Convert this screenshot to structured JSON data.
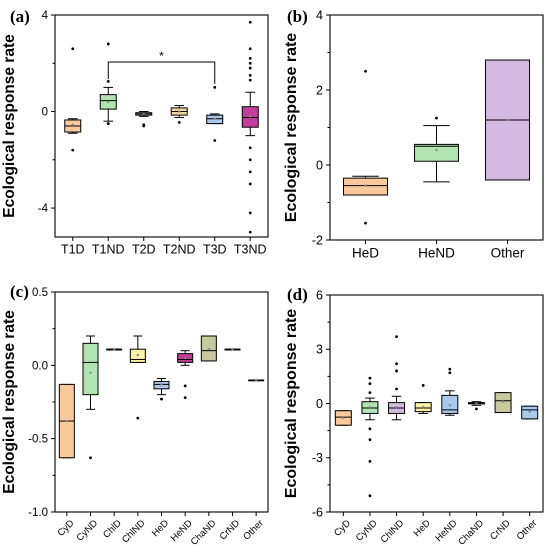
{
  "chart_data": [
    {
      "type": "box",
      "panel": "(a)",
      "ylabel": "Ecological response rate",
      "ylim": [
        -5.2,
        4.0
      ],
      "yticks": [
        -4,
        0,
        4
      ],
      "minor_ticks": [
        -2,
        2
      ],
      "categories": [
        "T1D",
        "T1ND",
        "T2D",
        "T2ND",
        "T3D",
        "T3ND"
      ],
      "colors": [
        "#f9c99b",
        "#b2e4b2",
        "#d8d8d8",
        "#f6d59a",
        "#a8c9ee",
        "#c43c9c"
      ],
      "boxes": [
        {
          "q1": -0.85,
          "median": -0.6,
          "q3": -0.35,
          "wlow": -0.9,
          "whigh": -0.3,
          "mean": -0.55,
          "outliers": [
            2.6,
            -1.6
          ]
        },
        {
          "q1": 0.1,
          "median": 0.45,
          "q3": 0.7,
          "wlow": -0.4,
          "whigh": 1.0,
          "mean": 0.4,
          "outliers": [
            2.8,
            1.25,
            -0.5
          ]
        },
        {
          "q1": -0.15,
          "median": -0.1,
          "q3": -0.05,
          "wlow": -0.2,
          "whigh": 0.0,
          "mean": -0.1,
          "outliers": [
            -0.6,
            -0.55
          ]
        },
        {
          "q1": -0.15,
          "median": 0.0,
          "q3": 0.15,
          "wlow": -0.25,
          "whigh": 0.25,
          "mean": 0.0,
          "outliers": [
            -0.45
          ]
        },
        {
          "q1": -0.5,
          "median": -0.3,
          "q3": -0.15,
          "wlow": -0.5,
          "whigh": -0.1,
          "mean": -0.3,
          "outliers": [
            1.0,
            -1.2
          ]
        },
        {
          "q1": -0.65,
          "median": -0.25,
          "q3": 0.2,
          "wlow": -1.0,
          "whigh": 0.8,
          "mean": -0.2,
          "outliers": [
            3.7,
            2.6,
            2.2,
            2.0,
            1.8,
            1.5,
            1.3,
            -1.5,
            -2.0,
            -2.5,
            -3.0,
            -4.2,
            -5.0
          ]
        }
      ],
      "annotation": {
        "text": "*",
        "from": "T1ND",
        "to": "T3D"
      }
    },
    {
      "type": "box",
      "panel": "(b)",
      "ylabel": "Ecological response rate",
      "ylim": [
        -2,
        4
      ],
      "yticks": [
        -2,
        0,
        2,
        4
      ],
      "minor_ticks": [
        -1,
        1,
        3
      ],
      "categories": [
        "HeD",
        "HeND",
        "Other"
      ],
      "colors": [
        "#f9c99b",
        "#b2e4b2",
        "#d4b9e0"
      ],
      "boxes": [
        {
          "q1": -0.8,
          "median": -0.55,
          "q3": -0.35,
          "wlow": -0.8,
          "whigh": -0.3,
          "mean": -0.55,
          "outliers": [
            2.5,
            -1.55
          ]
        },
        {
          "q1": 0.1,
          "median": 0.5,
          "q3": 0.55,
          "wlow": -0.45,
          "whigh": 1.05,
          "mean": 0.4,
          "outliers": [
            1.25
          ]
        },
        {
          "q1": -0.4,
          "median": 1.2,
          "q3": 2.8,
          "wlow": -0.4,
          "whigh": 2.8,
          "mean": 1.2,
          "outliers": []
        }
      ]
    },
    {
      "type": "box",
      "panel": "(c)",
      "ylabel": "Ecological response rate",
      "ylim": [
        -1.0,
        0.5
      ],
      "yticks": [
        -1.0,
        -0.5,
        0.0,
        0.5
      ],
      "ytick_labels": [
        "-1.0",
        "-0.5",
        "0.0",
        "0.5"
      ],
      "minor_ticks": [
        -0.75,
        -0.25,
        0.25
      ],
      "categories": [
        "CyD",
        "CyND",
        "ChlD",
        "ChlND",
        "HeD",
        "HeND",
        "ChaND",
        "CrND",
        "Other"
      ],
      "colors": [
        "#f9c99b",
        "#b2e4b2",
        "#ffffff",
        "#fdf3a6",
        "#a8c9ee",
        "#c43c9c",
        "#c8c89e",
        "#ffffff",
        "#ffffff"
      ],
      "boxes": [
        {
          "q1": -0.63,
          "median": -0.38,
          "q3": -0.13,
          "wlow": -0.63,
          "whigh": -0.13,
          "mean": -0.38,
          "outliers": []
        },
        {
          "q1": -0.2,
          "median": 0.02,
          "q3": 0.15,
          "wlow": -0.3,
          "whigh": 0.2,
          "mean": -0.05,
          "outliers": [
            -0.63
          ]
        },
        {
          "q1": 0.11,
          "median": 0.11,
          "q3": 0.11,
          "wlow": 0.11,
          "whigh": 0.11,
          "mean": 0.11,
          "outliers": []
        },
        {
          "q1": 0.02,
          "median": 0.04,
          "q3": 0.11,
          "wlow": 0.02,
          "whigh": 0.2,
          "mean": 0.07,
          "outliers": [
            -0.36
          ]
        },
        {
          "q1": -0.16,
          "median": -0.13,
          "q3": -0.11,
          "wlow": -0.2,
          "whigh": -0.09,
          "mean": -0.13,
          "outliers": [
            -0.23
          ]
        },
        {
          "q1": 0.02,
          "median": 0.04,
          "q3": 0.08,
          "wlow": 0.0,
          "whigh": 0.1,
          "mean": 0.05,
          "outliers": [
            -0.14,
            -0.22
          ]
        },
        {
          "q1": 0.03,
          "median": 0.1,
          "q3": 0.2,
          "wlow": 0.03,
          "whigh": 0.2,
          "mean": 0.11,
          "outliers": []
        },
        {
          "q1": 0.11,
          "median": 0.11,
          "q3": 0.11,
          "wlow": 0.11,
          "whigh": 0.11,
          "mean": 0.11,
          "outliers": []
        },
        {
          "q1": -0.1,
          "median": -0.1,
          "q3": -0.1,
          "wlow": -0.1,
          "whigh": -0.1,
          "mean": -0.1,
          "outliers": []
        }
      ]
    },
    {
      "type": "box",
      "panel": "(d)",
      "ylabel": "Ecological response rate",
      "ylim": [
        -6,
        6
      ],
      "yticks": [
        -6,
        -3,
        0,
        3,
        6
      ],
      "minor_ticks": [
        -4.5,
        -1.5,
        1.5,
        4.5
      ],
      "categories": [
        "CyD",
        "CyND",
        "ChlND",
        "HeD",
        "HeND",
        "ChaND",
        "CrND",
        "Other"
      ],
      "colors": [
        "#f9c99b",
        "#b2e4b2",
        "#d4b9e0",
        "#fdf3a6",
        "#a8c9ee",
        "#ffffff",
        "#c8c89e",
        "#a8c9ee"
      ],
      "boxes": [
        {
          "q1": -1.2,
          "median": -0.75,
          "q3": -0.4,
          "wlow": -1.2,
          "whigh": -0.4,
          "mean": -0.8,
          "outliers": []
        },
        {
          "q1": -0.55,
          "median": -0.25,
          "q3": 0.1,
          "wlow": -0.9,
          "whigh": 0.3,
          "mean": -0.2,
          "outliers": [
            1.4,
            1.1,
            0.6,
            -1.4,
            -2.0,
            -3.2,
            -5.1
          ]
        },
        {
          "q1": -0.55,
          "median": -0.25,
          "q3": 0.05,
          "wlow": -0.9,
          "whigh": 0.4,
          "mean": -0.2,
          "outliers": [
            3.7,
            2.2,
            1.8,
            0.8
          ]
        },
        {
          "q1": -0.45,
          "median": -0.25,
          "q3": 0.05,
          "wlow": -0.55,
          "whigh": 0.05,
          "mean": -0.2,
          "outliers": [
            1.0
          ]
        },
        {
          "q1": -0.55,
          "median": -0.35,
          "q3": 0.45,
          "wlow": -0.65,
          "whigh": 0.7,
          "mean": -0.1,
          "outliers": [
            1.9,
            1.7
          ]
        },
        {
          "q1": -0.02,
          "median": 0.0,
          "q3": 0.05,
          "wlow": -0.1,
          "whigh": 0.1,
          "mean": 0.0,
          "outliers": [
            -0.3
          ]
        },
        {
          "q1": -0.5,
          "median": 0.15,
          "q3": 0.6,
          "wlow": -0.5,
          "whigh": 0.6,
          "mean": 0.1,
          "outliers": []
        },
        {
          "q1": -0.85,
          "median": -0.35,
          "q3": -0.15,
          "wlow": -0.85,
          "whigh": -0.15,
          "mean": -0.45,
          "outliers": []
        }
      ]
    }
  ]
}
